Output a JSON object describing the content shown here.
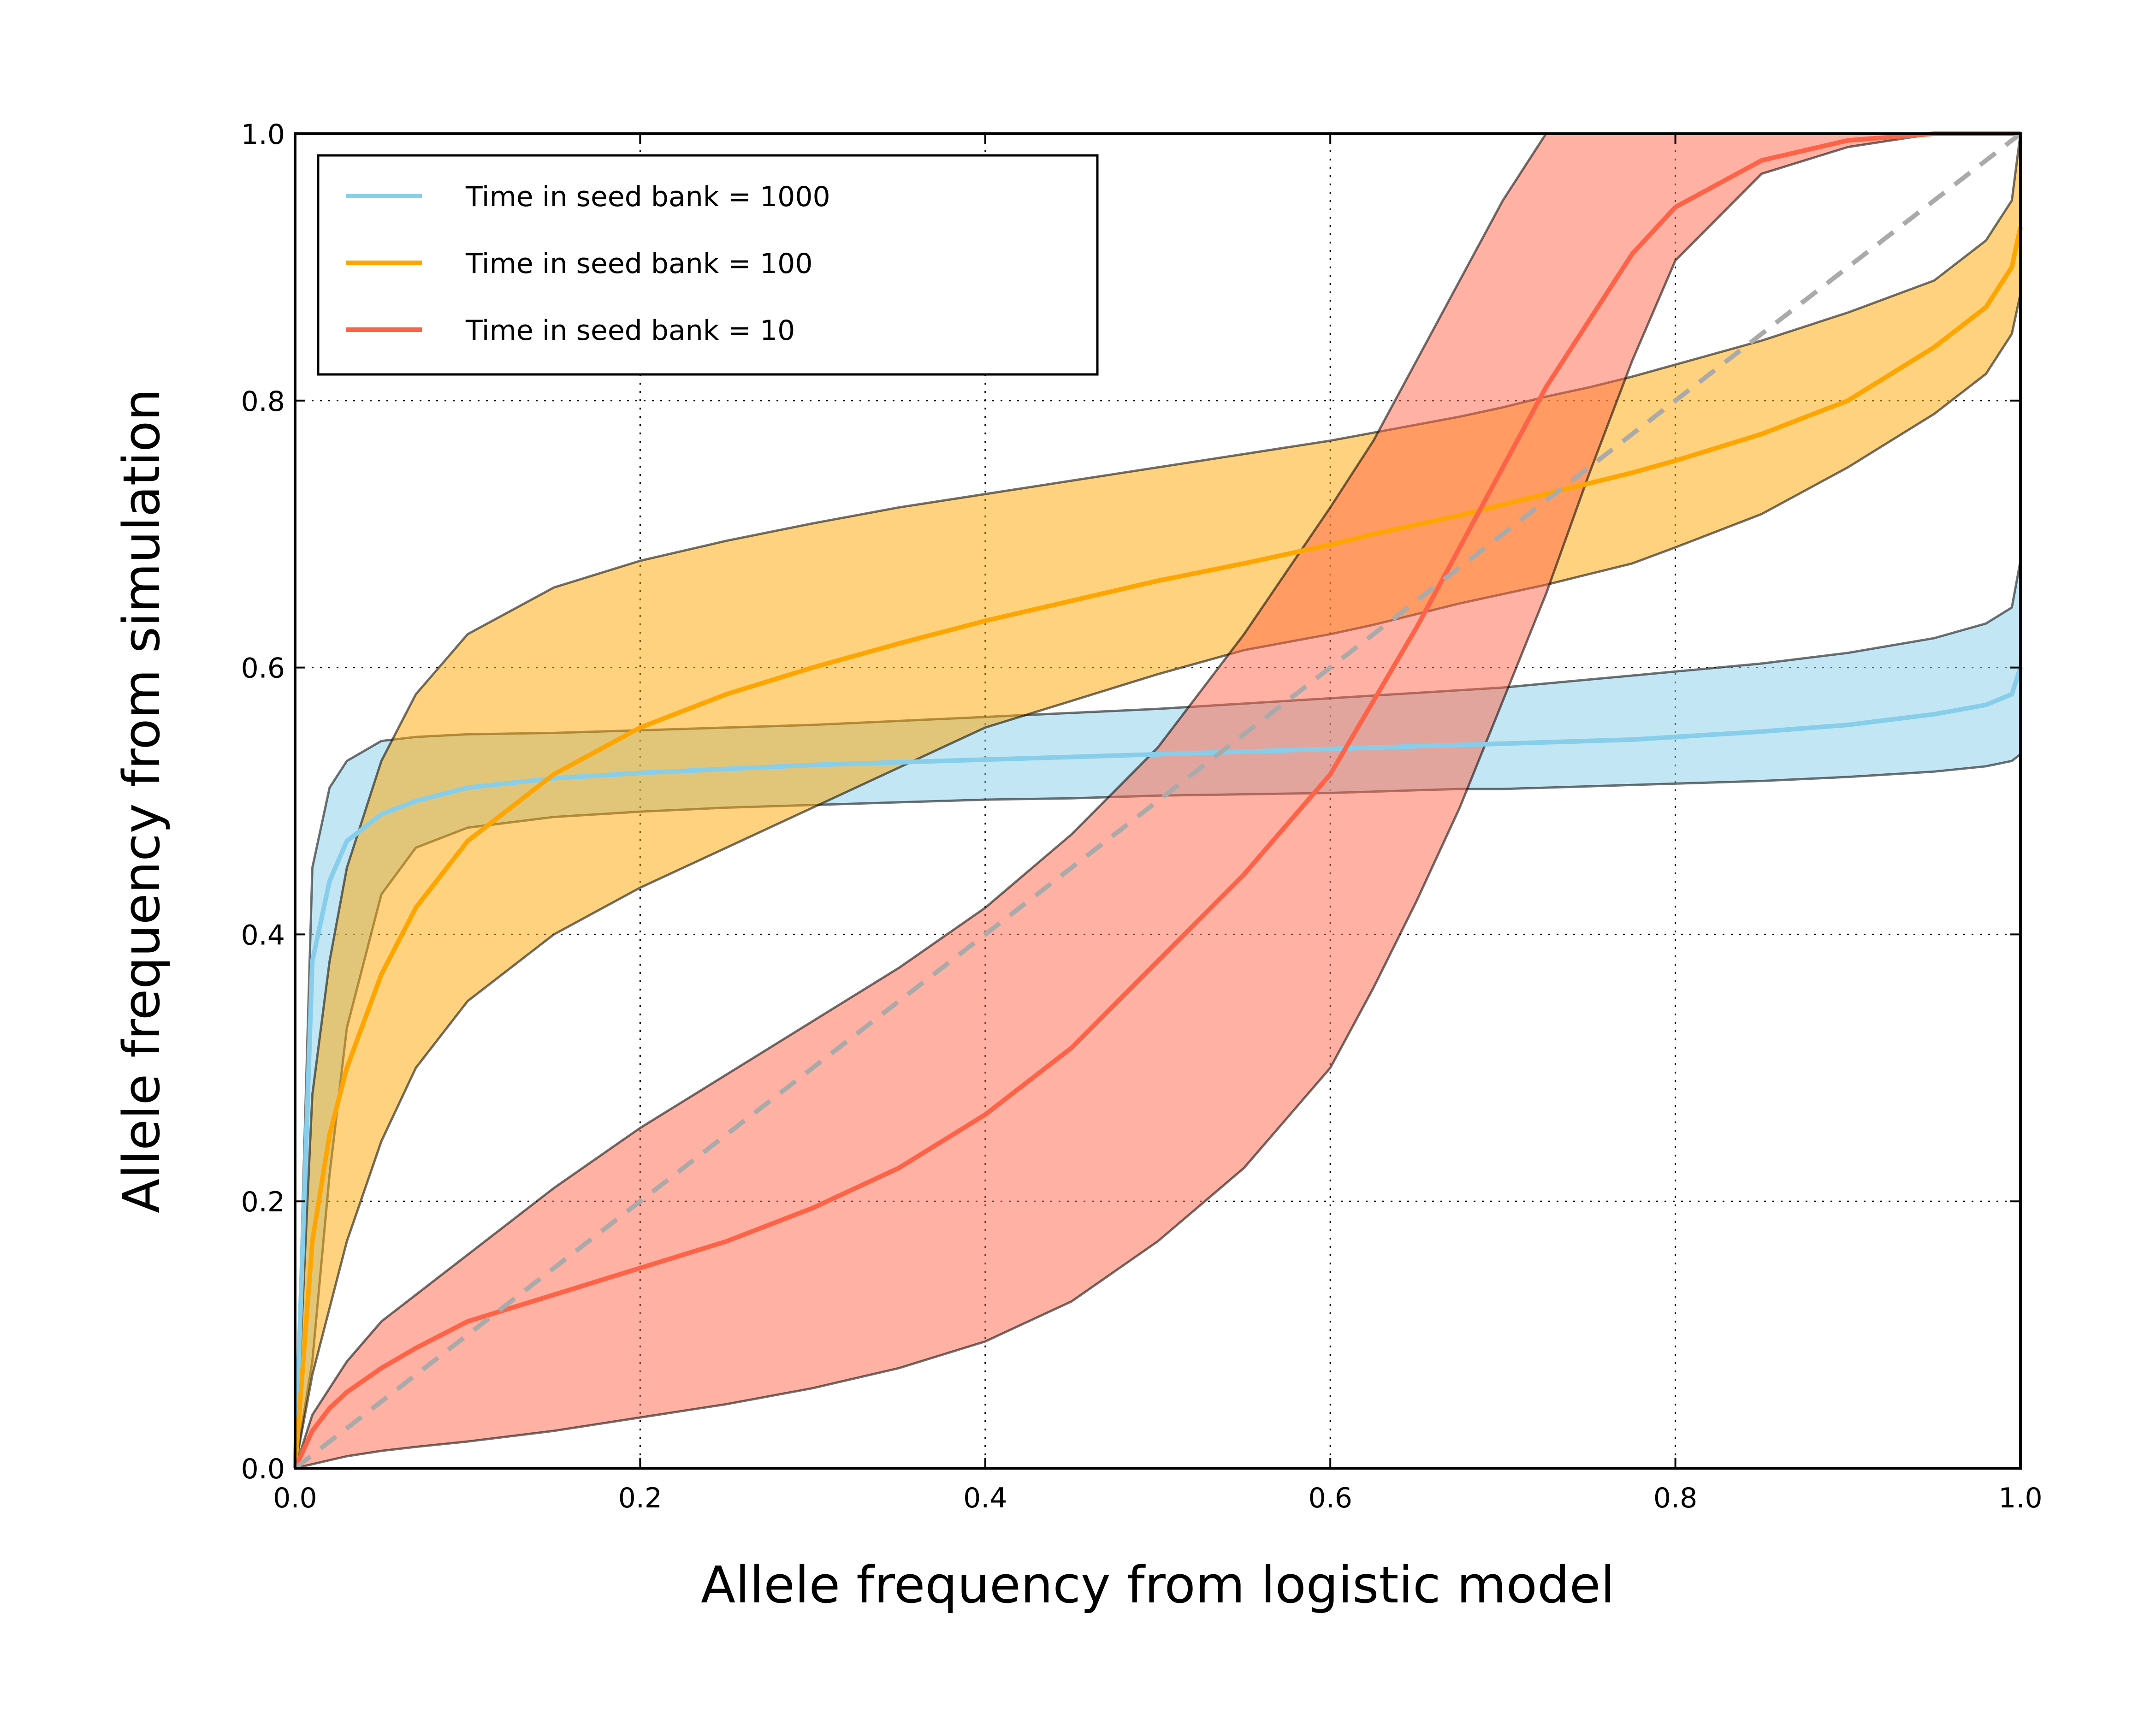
{
  "chart_data": {
    "type": "line",
    "xlabel": "Allele frequency from logistic model",
    "ylabel": "Allele frequency from simulation",
    "xlim": [
      0.0,
      1.0
    ],
    "ylim": [
      0.0,
      1.0
    ],
    "xticks": [
      "0.0",
      "0.2",
      "0.4",
      "0.6",
      "0.8",
      "1.0"
    ],
    "yticks": [
      "0.0",
      "0.2",
      "0.4",
      "0.6",
      "0.8",
      "1.0"
    ],
    "grid": true,
    "legend_position": "top-left",
    "x": [
      0.0,
      0.01,
      0.02,
      0.03,
      0.05,
      0.07,
      0.1,
      0.15,
      0.2,
      0.25,
      0.3,
      0.35,
      0.4,
      0.45,
      0.5,
      0.55,
      0.6,
      0.625,
      0.65,
      0.675,
      0.7,
      0.725,
      0.75,
      0.775,
      0.8,
      0.85,
      0.9,
      0.95,
      0.98,
      0.995,
      1.0
    ],
    "series": [
      {
        "name": "Time in seed bank = 1000",
        "color": "#87ceeb",
        "mean": [
          0.0,
          0.38,
          0.44,
          0.47,
          0.49,
          0.5,
          0.51,
          0.517,
          0.521,
          0.524,
          0.527,
          0.529,
          0.531,
          0.533,
          0.535,
          0.537,
          0.539,
          0.54,
          0.541,
          0.542,
          0.543,
          0.544,
          0.545,
          0.546,
          0.548,
          0.552,
          0.557,
          0.565,
          0.572,
          0.58,
          0.6
        ],
        "upper": [
          0.0,
          0.45,
          0.51,
          0.53,
          0.545,
          0.548,
          0.55,
          0.551,
          0.553,
          0.555,
          0.557,
          0.56,
          0.563,
          0.566,
          0.569,
          0.573,
          0.577,
          0.579,
          0.581,
          0.583,
          0.585,
          0.588,
          0.591,
          0.594,
          0.597,
          0.603,
          0.611,
          0.622,
          0.633,
          0.645,
          0.68
        ],
        "lower": [
          0.0,
          0.08,
          0.22,
          0.33,
          0.43,
          0.465,
          0.48,
          0.488,
          0.492,
          0.495,
          0.497,
          0.499,
          0.501,
          0.502,
          0.504,
          0.505,
          0.506,
          0.507,
          0.508,
          0.509,
          0.509,
          0.51,
          0.511,
          0.512,
          0.513,
          0.515,
          0.518,
          0.522,
          0.526,
          0.53,
          0.535
        ],
        "line_width": 10,
        "dashed": false
      },
      {
        "name": "Time in seed bank = 100",
        "color": "#ffa500",
        "mean": [
          0.0,
          0.17,
          0.25,
          0.3,
          0.37,
          0.42,
          0.47,
          0.52,
          0.555,
          0.58,
          0.6,
          0.618,
          0.635,
          0.65,
          0.665,
          0.678,
          0.692,
          0.7,
          0.707,
          0.714,
          0.722,
          0.73,
          0.738,
          0.746,
          0.755,
          0.775,
          0.8,
          0.84,
          0.87,
          0.9,
          0.93
        ],
        "upper": [
          0.0,
          0.28,
          0.38,
          0.45,
          0.53,
          0.58,
          0.625,
          0.66,
          0.68,
          0.695,
          0.708,
          0.72,
          0.73,
          0.74,
          0.75,
          0.76,
          0.77,
          0.776,
          0.782,
          0.788,
          0.795,
          0.803,
          0.81,
          0.818,
          0.827,
          0.845,
          0.866,
          0.89,
          0.92,
          0.95,
          1.0
        ],
        "lower": [
          0.0,
          0.07,
          0.12,
          0.17,
          0.245,
          0.3,
          0.35,
          0.4,
          0.435,
          0.465,
          0.495,
          0.525,
          0.555,
          0.575,
          0.595,
          0.613,
          0.625,
          0.632,
          0.64,
          0.648,
          0.655,
          0.662,
          0.67,
          0.678,
          0.69,
          0.715,
          0.75,
          0.79,
          0.82,
          0.85,
          0.88
        ],
        "line_width": 10,
        "dashed": false
      },
      {
        "name": "Time in seed bank = 10",
        "color": "#ff6347",
        "mean": [
          0.0,
          0.028,
          0.045,
          0.057,
          0.075,
          0.09,
          0.11,
          0.13,
          0.15,
          0.17,
          0.195,
          0.225,
          0.265,
          0.315,
          0.38,
          0.445,
          0.52,
          0.575,
          0.63,
          0.69,
          0.75,
          0.81,
          0.86,
          0.91,
          0.945,
          0.98,
          0.995,
          1.0,
          1.0,
          1.0,
          1.0
        ],
        "upper": [
          0.0,
          0.04,
          0.06,
          0.08,
          0.11,
          0.13,
          0.16,
          0.21,
          0.255,
          0.295,
          0.335,
          0.375,
          0.42,
          0.475,
          0.54,
          0.625,
          0.72,
          0.77,
          0.83,
          0.89,
          0.95,
          1.0,
          1.0,
          1.0,
          1.0,
          1.0,
          1.0,
          1.0,
          1.0,
          1.0,
          1.0
        ],
        "lower": [
          0.0,
          0.003,
          0.006,
          0.009,
          0.013,
          0.016,
          0.02,
          0.028,
          0.038,
          0.048,
          0.06,
          0.075,
          0.095,
          0.125,
          0.17,
          0.225,
          0.3,
          0.36,
          0.425,
          0.495,
          0.575,
          0.655,
          0.745,
          0.83,
          0.905,
          0.97,
          0.99,
          1.0,
          1.0,
          1.0,
          1.0
        ],
        "line_width": 10,
        "dashed": false
      },
      {
        "name": "",
        "color": "#aaaaaa",
        "mean": [
          0.0,
          0.01,
          0.02,
          0.03,
          0.05,
          0.07,
          0.1,
          0.15,
          0.2,
          0.25,
          0.3,
          0.35,
          0.4,
          0.45,
          0.5,
          0.55,
          0.6,
          0.625,
          0.65,
          0.675,
          0.7,
          0.725,
          0.75,
          0.775,
          0.8,
          0.85,
          0.9,
          0.95,
          0.98,
          0.995,
          1.0
        ],
        "line_width": 10,
        "dashed": true
      }
    ]
  }
}
